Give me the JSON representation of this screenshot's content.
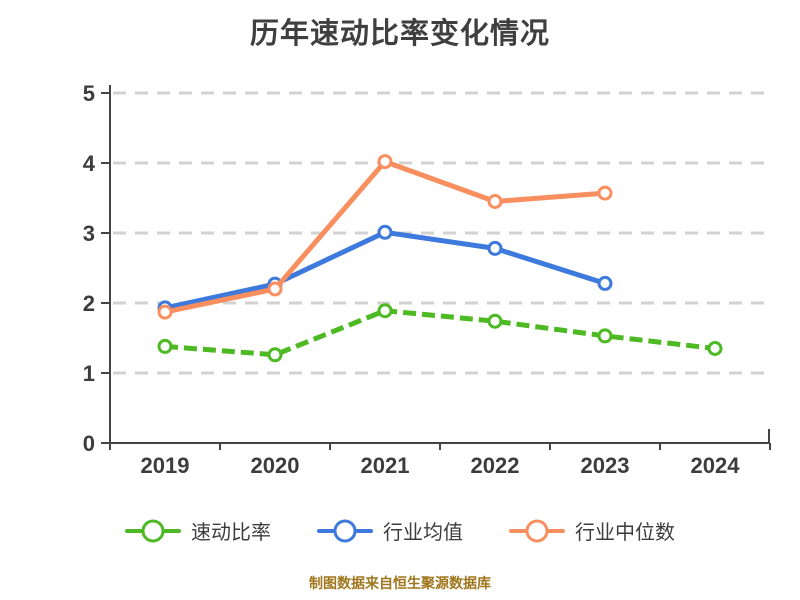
{
  "title": "历年速动比率变化情况",
  "footer": {
    "text": "制图数据来自恒生聚源数据库",
    "color": "#a0761d"
  },
  "colors": {
    "title_text": "#3f3f3f",
    "axis": "#454545",
    "tick_label": "#3c3c3c",
    "gridline": "#d2d2d2",
    "legend_text": "#3d3d3d",
    "marker_fill": "#ffffff",
    "background": "#ffffff"
  },
  "chart_data": {
    "type": "line",
    "title": "历年速动比率变化情况",
    "categories": [
      "2019",
      "2020",
      "2021",
      "2022",
      "2023",
      "2024"
    ],
    "series": [
      {
        "id": "quick-ratio",
        "name": "速动比率",
        "color": "#4db923",
        "line_style": "dashed",
        "values": [
          1.38,
          1.26,
          1.89,
          1.74,
          1.53,
          1.35
        ]
      },
      {
        "id": "industry-mean",
        "name": "行业均值",
        "color": "#3e79dd",
        "line_style": "solid",
        "values": [
          1.93,
          2.27,
          3.01,
          2.78,
          2.28,
          null
        ]
      },
      {
        "id": "industry-median",
        "name": "行业中位数",
        "color": "#f98e5f",
        "line_style": "solid",
        "values": [
          1.87,
          2.2,
          4.02,
          3.45,
          3.57,
          null
        ]
      }
    ],
    "xlabel": "",
    "ylabel": "",
    "ylim": [
      0,
      5
    ],
    "yticks": [
      0,
      1,
      2,
      3,
      4,
      5
    ],
    "grid": "horizontal-dashed",
    "legend_position": "bottom",
    "marker": "circle-white-fill"
  }
}
